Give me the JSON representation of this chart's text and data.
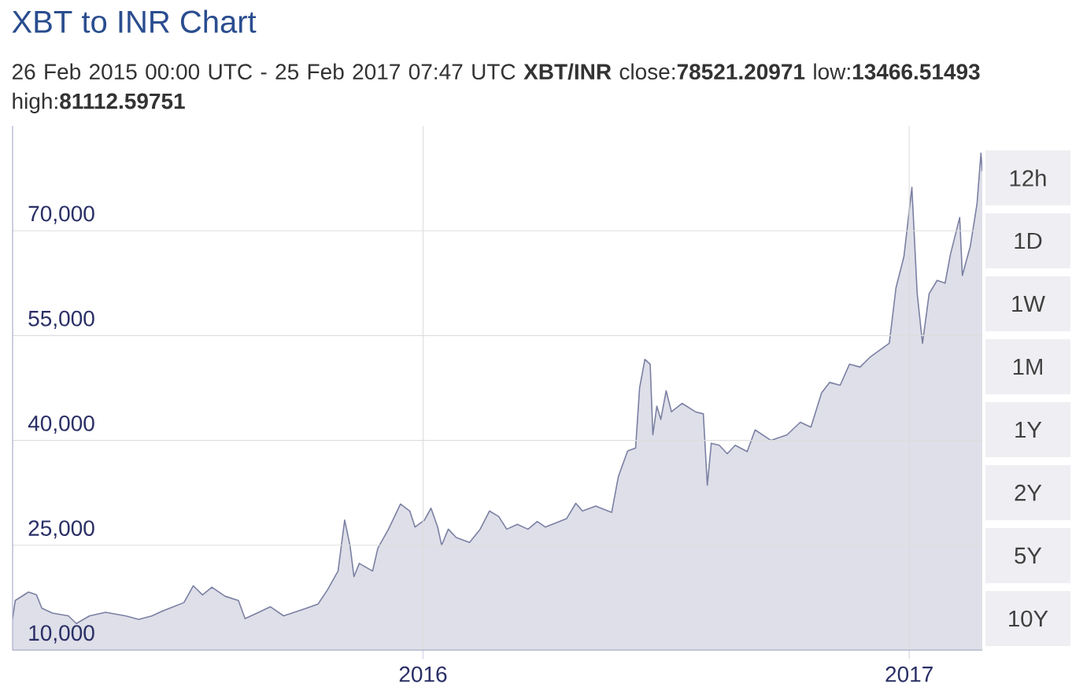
{
  "chart_data": {
    "type": "area",
    "title": "XBT to INR Chart",
    "subtitle": "26 Feb 2015 00:00 UTC - 25 Feb 2017 07:47 UTC   **XBT/INR** close:**78521.20971** low:**13466.51493** high:**81112.59751**",
    "xlim": [
      "2015-02-26",
      "2017-02-25"
    ],
    "xticks": [
      {
        "value": "2016-01-01",
        "label": "2016"
      },
      {
        "value": "2017-01-01",
        "label": "2017"
      }
    ],
    "ylim": [
      10000,
      85000
    ],
    "yticks": [
      {
        "value": 10000,
        "label": "10,000"
      },
      {
        "value": 25000,
        "label": "25,000"
      },
      {
        "value": 40000,
        "label": "40,000"
      },
      {
        "value": 55000,
        "label": "55,000"
      },
      {
        "value": 70000,
        "label": "70,000"
      }
    ],
    "grid": true,
    "annotations": [
      "12h",
      "1D",
      "1W",
      "1M",
      "1Y",
      "2Y",
      "5Y",
      "10Y"
    ],
    "series": [
      {
        "color": "#7b80a3",
        "x": [
          "2015-02-26",
          "2015-02-28",
          "2015-03-10",
          "2015-03-16",
          "2015-03-20",
          "2015-03-28",
          "2015-04-09",
          "2015-04-15",
          "2015-04-25",
          "2015-05-07",
          "2015-05-22",
          "2015-06-01",
          "2015-06-11",
          "2015-06-19",
          "2015-06-27",
          "2015-07-05",
          "2015-07-12",
          "2015-07-19",
          "2015-07-26",
          "2015-08-05",
          "2015-08-15",
          "2015-08-20",
          "2015-08-29",
          "2015-09-08",
          "2015-09-18",
          "2015-10-04",
          "2015-10-14",
          "2015-10-21",
          "2015-10-29",
          "2015-11-03",
          "2015-11-07",
          "2015-11-10",
          "2015-11-14",
          "2015-11-24",
          "2015-11-28",
          "2015-12-06",
          "2015-12-15",
          "2015-12-22",
          "2015-12-26",
          "2016-01-02",
          "2016-01-07",
          "2016-01-12",
          "2016-01-15",
          "2016-01-20",
          "2016-01-26",
          "2016-02-05",
          "2016-02-13",
          "2016-02-20",
          "2016-02-27",
          "2016-03-04",
          "2016-03-12",
          "2016-03-20",
          "2016-03-27",
          "2016-04-02",
          "2016-04-18",
          "2016-04-25",
          "2016-04-30",
          "2016-05-10",
          "2016-05-22",
          "2016-05-27",
          "2016-06-03",
          "2016-06-09",
          "2016-06-12",
          "2016-06-16",
          "2016-06-20",
          "2016-06-22",
          "2016-06-25",
          "2016-06-28",
          "2016-07-02",
          "2016-07-06",
          "2016-07-14",
          "2016-07-24",
          "2016-07-30",
          "2016-08-02",
          "2016-08-05",
          "2016-08-11",
          "2016-08-17",
          "2016-08-23",
          "2016-09-01",
          "2016-09-07",
          "2016-09-19",
          "2016-10-01",
          "2016-10-11",
          "2016-10-19",
          "2016-10-27",
          "2016-11-02",
          "2016-11-10",
          "2016-11-17",
          "2016-11-25",
          "2016-12-03",
          "2016-12-17",
          "2016-12-22",
          "2016-12-28",
          "2017-01-03",
          "2017-01-07",
          "2017-01-11",
          "2017-01-16",
          "2017-01-22",
          "2017-01-28",
          "2017-02-01",
          "2017-02-08",
          "2017-02-10",
          "2017-02-16",
          "2017-02-21",
          "2017-02-24",
          "2017-02-25"
        ],
        "values": [
          14500,
          17100,
          18300,
          17900,
          16000,
          15300,
          14900,
          13800,
          14900,
          15400,
          14900,
          14400,
          14900,
          15600,
          16200,
          16800,
          19200,
          17900,
          19000,
          17700,
          17100,
          14500,
          15300,
          16200,
          14900,
          15900,
          16600,
          18600,
          21300,
          28600,
          25000,
          20500,
          22400,
          21300,
          24600,
          27300,
          30900,
          29900,
          27600,
          28600,
          30300,
          27600,
          25000,
          27300,
          26100,
          25400,
          27300,
          29900,
          29100,
          27300,
          28000,
          27300,
          28400,
          27600,
          28800,
          31000,
          29900,
          30600,
          29700,
          34800,
          38500,
          38900,
          47500,
          51600,
          50900,
          40800,
          44900,
          43000,
          47100,
          44100,
          45300,
          44100,
          43800,
          33600,
          39600,
          39300,
          38100,
          39300,
          38400,
          41500,
          40000,
          40800,
          42600,
          41900,
          46800,
          48300,
          47900,
          50900,
          50500,
          52000,
          53900,
          61800,
          66300,
          76200,
          61000,
          53900,
          61000,
          62900,
          62500,
          66600,
          71900,
          63600,
          67800,
          73800,
          81100,
          78500
        ]
      }
    ]
  }
}
